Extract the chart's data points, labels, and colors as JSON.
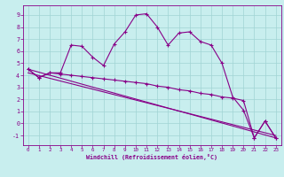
{
  "xlabel": "Windchill (Refroidissement éolien,°C)",
  "bg_color": "#c8eeee",
  "grid_color": "#a0d4d4",
  "line_color": "#880088",
  "x_ticks": [
    0,
    1,
    2,
    3,
    4,
    5,
    6,
    7,
    8,
    9,
    10,
    11,
    12,
    13,
    14,
    15,
    16,
    17,
    18,
    19,
    20,
    21,
    22,
    23
  ],
  "y_ticks": [
    -1,
    0,
    1,
    2,
    3,
    4,
    5,
    6,
    7,
    8,
    9
  ],
  "xlim": [
    -0.5,
    23.5
  ],
  "ylim": [
    -1.8,
    9.8
  ],
  "curve1_x": [
    0,
    1,
    2,
    3,
    4,
    5,
    6,
    7,
    8,
    9,
    10,
    11,
    12,
    13,
    14,
    15,
    16,
    17,
    18,
    19,
    20,
    21,
    22,
    23
  ],
  "curve1_y": [
    4.5,
    3.8,
    4.2,
    4.2,
    6.5,
    6.4,
    5.5,
    4.8,
    6.6,
    7.6,
    9.0,
    9.1,
    8.0,
    6.5,
    7.5,
    7.6,
    6.8,
    6.5,
    5.0,
    2.2,
    1.1,
    -1.2,
    0.2,
    -1.2
  ],
  "curve2_x": [
    0,
    1,
    2,
    3,
    4,
    5,
    6,
    7,
    8,
    9,
    10,
    11,
    12,
    13,
    14,
    15,
    16,
    17,
    18,
    19,
    20,
    21,
    22,
    23
  ],
  "curve2_y": [
    4.5,
    3.8,
    4.2,
    4.1,
    4.0,
    3.9,
    3.8,
    3.7,
    3.6,
    3.5,
    3.4,
    3.3,
    3.1,
    3.0,
    2.8,
    2.7,
    2.5,
    2.4,
    2.2,
    2.1,
    1.9,
    -1.2,
    0.2,
    -1.2
  ],
  "trend1_x": [
    0,
    23
  ],
  "trend1_y": [
    4.5,
    -1.2
  ],
  "trend2_x": [
    0,
    23
  ],
  "trend2_y": [
    4.2,
    -1.0
  ]
}
